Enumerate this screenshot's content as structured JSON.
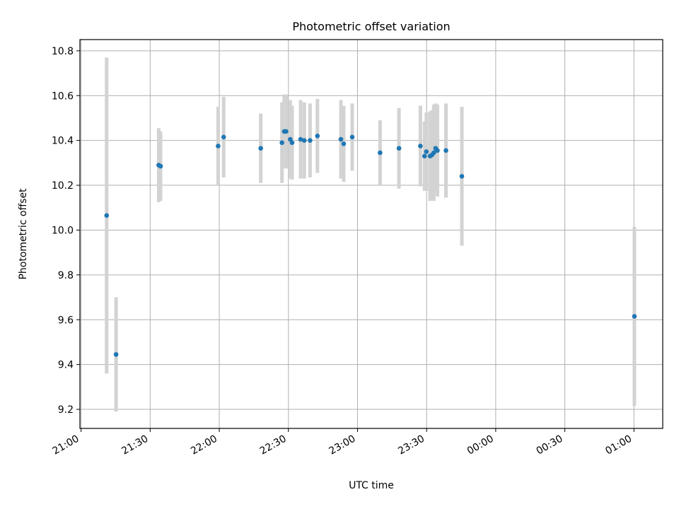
{
  "chart_data": {
    "type": "scatter",
    "title": "Photometric offset variation",
    "xlabel": "UTC time",
    "ylabel": "Photometric offset",
    "x_tick_labels": [
      "21:00",
      "21:30",
      "22:00",
      "22:30",
      "23:00",
      "23:30",
      "00:00",
      "00:30",
      "01:00"
    ],
    "x_tick_minutes": [
      0,
      30,
      60,
      90,
      120,
      150,
      180,
      210,
      240
    ],
    "x_unit": "minutes after 21:00 UTC",
    "xlim": [
      -0.5,
      252.5
    ],
    "y_ticks": [
      9.2,
      9.4,
      9.6,
      9.8,
      10.0,
      10.2,
      10.4,
      10.6,
      10.8
    ],
    "y_tick_labels": [
      "9.2",
      "9.4",
      "9.6",
      "9.8",
      "10.0",
      "10.2",
      "10.4",
      "10.6",
      "10.8"
    ],
    "ylim": [
      9.115,
      10.85
    ],
    "grid": true,
    "colors": {
      "points": "#1f77b4",
      "errorbars": "#d3d3d3",
      "grid": "#b0b0b0"
    },
    "points": [
      {
        "x": 11.1,
        "y": 10.065,
        "err": 0.705
      },
      {
        "x": 15.2,
        "y": 9.445,
        "err": 0.255
      },
      {
        "x": 33.7,
        "y": 10.29,
        "err": 0.165
      },
      {
        "x": 34.5,
        "y": 10.285,
        "err": 0.155
      },
      {
        "x": 59.5,
        "y": 10.375,
        "err": 0.175
      },
      {
        "x": 61.9,
        "y": 10.415,
        "err": 0.18
      },
      {
        "x": 78.0,
        "y": 10.365,
        "err": 0.155
      },
      {
        "x": 87.2,
        "y": 10.39,
        "err": 0.18
      },
      {
        "x": 88.2,
        "y": 10.44,
        "err": 0.165
      },
      {
        "x": 89.0,
        "y": 10.44,
        "err": 0.165
      },
      {
        "x": 90.8,
        "y": 10.405,
        "err": 0.175
      },
      {
        "x": 91.6,
        "y": 10.39,
        "err": 0.165
      },
      {
        "x": 95.3,
        "y": 10.405,
        "err": 0.175
      },
      {
        "x": 96.9,
        "y": 10.4,
        "err": 0.17
      },
      {
        "x": 99.4,
        "y": 10.4,
        "err": 0.165
      },
      {
        "x": 102.6,
        "y": 10.42,
        "err": 0.165
      },
      {
        "x": 112.8,
        "y": 10.405,
        "err": 0.175
      },
      {
        "x": 114.0,
        "y": 10.385,
        "err": 0.17
      },
      {
        "x": 117.7,
        "y": 10.415,
        "err": 0.15
      },
      {
        "x": 129.8,
        "y": 10.345,
        "err": 0.145
      },
      {
        "x": 138.0,
        "y": 10.365,
        "err": 0.18
      },
      {
        "x": 147.3,
        "y": 10.375,
        "err": 0.18
      },
      {
        "x": 149.1,
        "y": 10.33,
        "err": 0.155
      },
      {
        "x": 149.9,
        "y": 10.35,
        "err": 0.175
      },
      {
        "x": 151.5,
        "y": 10.33,
        "err": 0.2
      },
      {
        "x": 152.3,
        "y": 10.335,
        "err": 0.2
      },
      {
        "x": 153.1,
        "y": 10.345,
        "err": 0.215
      },
      {
        "x": 153.9,
        "y": 10.365,
        "err": 0.2
      },
      {
        "x": 154.7,
        "y": 10.355,
        "err": 0.205
      },
      {
        "x": 158.4,
        "y": 10.355,
        "err": 0.21
      },
      {
        "x": 165.3,
        "y": 10.24,
        "err": 0.31
      },
      {
        "x": 240.2,
        "y": 9.615,
        "err": 0.4
      }
    ]
  }
}
